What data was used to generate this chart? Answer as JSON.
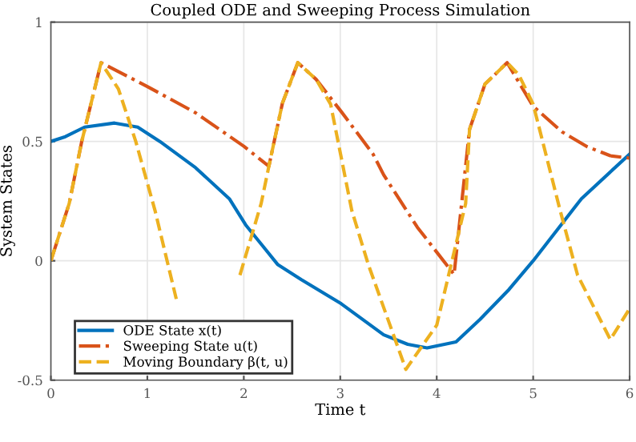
{
  "chart_data": {
    "type": "line",
    "title": "Coupled ODE and Sweeping Process Simulation",
    "xlabel": "Time t",
    "ylabel": "System States",
    "xlim": [
      0,
      6
    ],
    "ylim": [
      -0.5,
      1
    ],
    "xticks": [
      0,
      1,
      2,
      3,
      4,
      5,
      6
    ],
    "yticks": [
      -0.5,
      0,
      0.5,
      1
    ],
    "grid": true,
    "legend": "bottom left",
    "series": [
      {
        "name": "ODE State x(t)",
        "color": "#0072bd",
        "line_style": "solid",
        "x": [
          0,
          0.15,
          0.35,
          0.66,
          0.9,
          1.13,
          1.5,
          1.85,
          2.02,
          2.2,
          2.35,
          2.6,
          3.01,
          3.45,
          3.7,
          3.9,
          4.2,
          4.45,
          4.75,
          5.0,
          5.5,
          6
        ],
        "values": [
          0.5,
          0.52,
          0.56,
          0.577,
          0.56,
          0.5,
          0.39,
          0.26,
          0.15,
          0.06,
          -0.015,
          -0.08,
          -0.18,
          -0.31,
          -0.35,
          -0.365,
          -0.34,
          -0.245,
          -0.12,
          0.0,
          0.26,
          0.447
        ]
      },
      {
        "name": "Sweeping State u(t)",
        "color": "#d95319",
        "line_style": "dashdot",
        "x": [
          0,
          0.19,
          0.32,
          0.52,
          1.0,
          1.5,
          2.0,
          2.26,
          2.4,
          2.56,
          2.75,
          3.01,
          3.34,
          3.45,
          3.8,
          4.18,
          4.34,
          4.5,
          4.73,
          5.0,
          5.3,
          5.56,
          5.8,
          6
        ],
        "values": [
          0,
          0.24,
          0.5,
          0.83,
          0.73,
          0.62,
          0.48,
          0.396,
          0.66,
          0.83,
          0.76,
          0.625,
          0.447,
          0.36,
          0.14,
          -0.057,
          0.55,
          0.74,
          0.83,
          0.647,
          0.54,
          0.478,
          0.44,
          0.43
        ]
      },
      {
        "name": "Moving Boundary β(t, u)",
        "color": "#edb120",
        "line_style": "dashed",
        "x": [
          0,
          0.19,
          0.32,
          0.52,
          0.7,
          0.88,
          1.08,
          1.3,
          1.63,
          1.96,
          2.18,
          2.26,
          2.4,
          2.56,
          2.75,
          2.9,
          3.12,
          3.29,
          3.68,
          4.0,
          4.3,
          4.34,
          4.5,
          4.73,
          4.85,
          5.0,
          5.28,
          5.46,
          5.8,
          6
        ],
        "values": [
          0,
          0.24,
          0.5,
          0.83,
          0.72,
          0.5,
          0.21,
          -0.16,
          null,
          -0.06,
          0.24,
          0.396,
          0.66,
          0.83,
          0.76,
          0.656,
          0.21,
          -0.015,
          -0.455,
          -0.27,
          0.24,
          0.55,
          0.74,
          0.83,
          0.78,
          0.656,
          0.21,
          -0.06,
          -0.33,
          -0.2
        ]
      }
    ]
  }
}
